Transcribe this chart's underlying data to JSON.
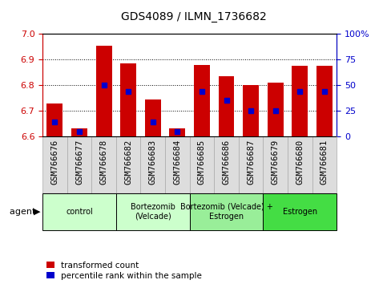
{
  "title": "GDS4089 / ILMN_1736682",
  "samples": [
    "GSM766676",
    "GSM766677",
    "GSM766678",
    "GSM766682",
    "GSM766683",
    "GSM766684",
    "GSM766685",
    "GSM766686",
    "GSM766687",
    "GSM766679",
    "GSM766680",
    "GSM766681"
  ],
  "bar_values": [
    6.73,
    6.63,
    6.955,
    6.885,
    6.745,
    6.63,
    6.88,
    6.835,
    6.8,
    6.81,
    6.875,
    6.875
  ],
  "percentile_values": [
    14,
    5,
    50,
    44,
    14,
    5,
    44,
    35,
    25,
    25,
    44,
    44
  ],
  "ylim_left": [
    6.6,
    7.0
  ],
  "ylim_right": [
    0,
    100
  ],
  "yticks_left": [
    6.6,
    6.7,
    6.8,
    6.9,
    7.0
  ],
  "yticks_right": [
    0,
    25,
    50,
    75,
    100
  ],
  "bar_color": "#cc0000",
  "bar_base": 6.6,
  "percentile_color": "#0000cc",
  "groups": [
    {
      "label": "control",
      "start": 0,
      "end": 2,
      "color": "#ccffcc"
    },
    {
      "label": "Bortezomib\n(Velcade)",
      "start": 3,
      "end": 5,
      "color": "#ccffcc"
    },
    {
      "label": "Bortezomib (Velcade) +\nEstrogen",
      "start": 6,
      "end": 8,
      "color": "#99ee99"
    },
    {
      "label": "Estrogen",
      "start": 9,
      "end": 11,
      "color": "#44dd44"
    }
  ],
  "right_axis_color": "#0000cc",
  "left_axis_color": "#cc0000",
  "bar_width": 0.65,
  "tick_label_fontsize": 7.5,
  "legend_red_label": "transformed count",
  "legend_blue_label": "percentile rank within the sample"
}
